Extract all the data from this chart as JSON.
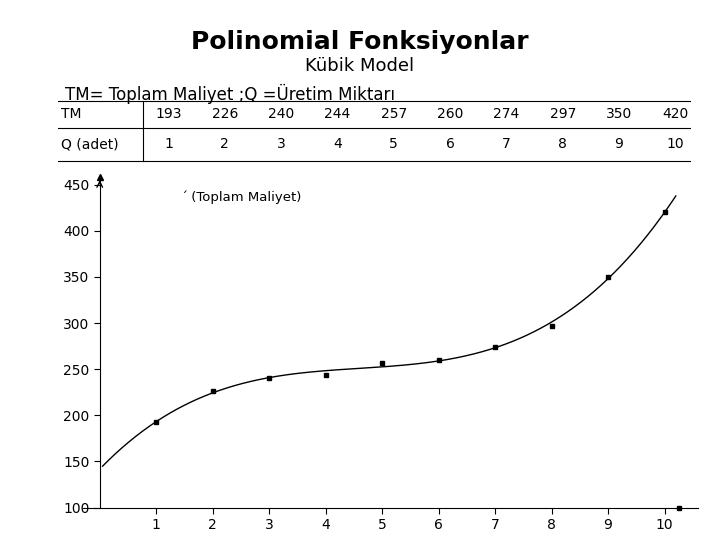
{
  "title": "Polinomial Fonksiyonlar",
  "subtitle": "Kübik Model",
  "description": "TM= Toplam Maliyet ;Q =Üretim Miktarı",
  "table_row1_label": "TM",
  "table_row2_label": "Q (adet)",
  "TM_values": [
    193,
    226,
    240,
    244,
    257,
    260,
    274,
    297,
    350,
    420
  ],
  "Q_values": [
    1,
    2,
    3,
    4,
    5,
    6,
    7,
    8,
    9,
    10
  ],
  "legend_label": "́ (Toplam Maliyet)",
  "ylim": [
    100,
    460
  ],
  "xlim": [
    -0.3,
    10.6
  ],
  "yticks": [
    100,
    150,
    200,
    250,
    300,
    350,
    400,
    450
  ],
  "xticks": [
    1,
    2,
    3,
    4,
    5,
    6,
    7,
    8,
    9,
    10
  ],
  "bg_color": "#ffffff",
  "line_color": "#000000",
  "marker_color": "#000000",
  "title_fontsize": 18,
  "subtitle_fontsize": 13,
  "desc_fontsize": 12,
  "table_fontsize": 10,
  "axis_fontsize": 10
}
